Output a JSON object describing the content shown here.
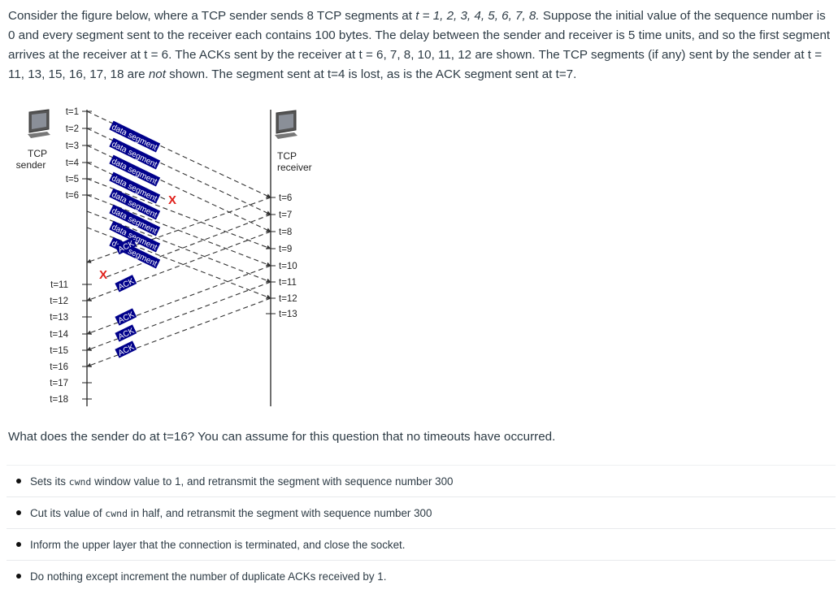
{
  "intro": {
    "part1": "Consider the figure below, where a TCP sender sends 8 TCP segments at ",
    "part2": "t = 1, 2, 3, 4, 5, 6, 7, 8.",
    "part3": " Suppose the initial value of the sequence number is 0 and every segment sent to the receiver each contains 100 bytes. The delay between the sender and receiver is 5 time units, and so the first segment arrives at the receiver at t = 6.  The ACKs sent by the receiver at t =  6, 7, 8, 10, 11, 12 are shown.  The TCP segments (if any) sent by the sender at t = 11, 13, 15, 16, 17, 18 are ",
    "part4": "not",
    "part5": " shown. The segment sent at t=4 is lost, as is the ACK segment sent at t=7."
  },
  "diagram": {
    "sender_label_line1": "TCP",
    "sender_label_line2": "sender",
    "receiver_label_line1": "TCP",
    "receiver_label_line2": "receiver",
    "sender_times_top": [
      "t=1",
      "t=2",
      "t=3",
      "t=4",
      "t=5",
      "t=6"
    ],
    "sender_times_bottom": [
      "t=11",
      "t=12",
      "t=13",
      "t=14",
      "t=15",
      "t=16",
      "t=17",
      "t=18"
    ],
    "receiver_times": [
      "t=6",
      "t=7",
      "t=8",
      "t=9",
      "t=10",
      "t=11",
      "t=12",
      "t=13"
    ],
    "data_segment_label": "data segment",
    "ack_label": "ACK",
    "lost_marker": "X",
    "colors": {
      "label_bg": "#00008b",
      "lost": "#e0201a",
      "line": "#333333"
    }
  },
  "question": "What does the sender do at t=16?  You can assume for this question that no timeouts have occurred.",
  "options": [
    {
      "before": "Sets its ",
      "code": "cwnd",
      "after": " window value to 1, and retransmit the segment with sequence number 300"
    },
    {
      "before": "Cut its value of ",
      "code": "cwnd",
      "after": " in half, and retransmit the segment with sequence number 300"
    },
    {
      "before": "Inform the upper layer that the connection is terminated, and close the socket.",
      "code": "",
      "after": ""
    },
    {
      "before": "Do nothing except increment the number of duplicate ACKs received by 1.",
      "code": "",
      "after": ""
    }
  ]
}
